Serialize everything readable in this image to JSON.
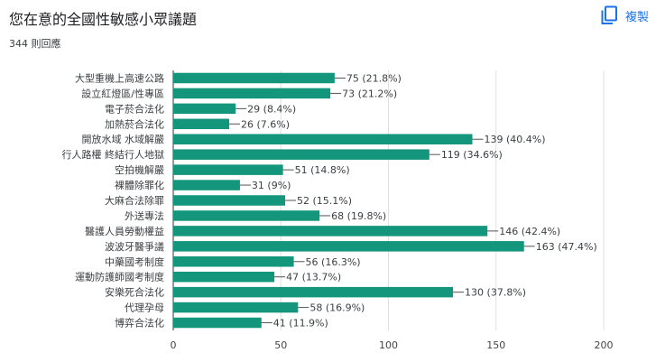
{
  "header": {
    "title": "您在意的全國性敏感小眾議題",
    "response_count": "344 則回應",
    "copy_label": "複製"
  },
  "colors": {
    "bar": "#13967b",
    "accent": "#1a73e8"
  },
  "icons": {
    "copy": "copy-icon"
  },
  "chart_data": {
    "type": "bar",
    "orientation": "horizontal",
    "title": "",
    "xlabel": "",
    "ylabel": "",
    "xlim": [
      0,
      200
    ],
    "xticks": [
      0,
      50,
      100,
      150,
      200
    ],
    "grid": true,
    "categories": [
      "大型重機上高速公路",
      "設立紅燈區/性專區",
      "電子菸合法化",
      "加熱菸合法化",
      "開放水域 水域解嚴",
      "行人路權 終結行人地獄",
      "空拍機解嚴",
      "裸體除罪化",
      "大麻合法除罪",
      "外送專法",
      "醫護人員勞動權益",
      "波波牙醫爭議",
      "中藥國考制度",
      "運動防護師國考制度",
      "安樂死合法化",
      "代理孕母",
      "博弈合法化"
    ],
    "values": [
      75,
      73,
      29,
      26,
      139,
      119,
      51,
      31,
      52,
      68,
      146,
      163,
      56,
      47,
      130,
      58,
      41
    ],
    "data_labels": [
      "75 (21.8%)",
      "73 (21.2%)",
      "29 (8.4%)",
      "26 (7.6%)",
      "139 (40.4%)",
      "119 (34.6%)",
      "51 (14.8%)",
      "31 (9%)",
      "52 (15.1%)",
      "68 (19.8%)",
      "146 (42.4%)",
      "163 (47.4%)",
      "56 (16.3%)",
      "47 (13.7%)",
      "130 (37.8%)",
      "58 (16.9%)",
      "41 (11.9%)"
    ]
  }
}
